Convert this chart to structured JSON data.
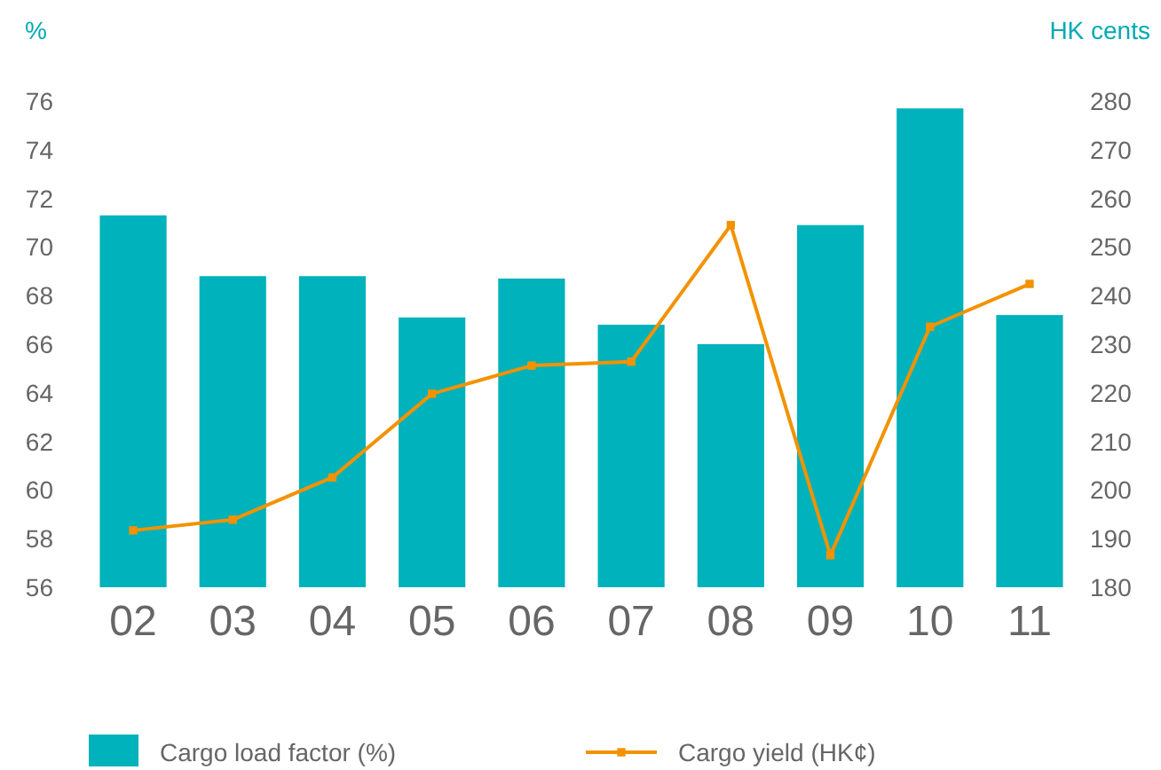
{
  "chart_data": {
    "type": "bar",
    "ylabel": "%",
    "y2label": "HK cents",
    "categories": [
      "02",
      "03",
      "04",
      "05",
      "06",
      "07",
      "08",
      "09",
      "10",
      "11"
    ],
    "series": [
      {
        "name": "Cargo load factor (%)",
        "color": "#00b2bb",
        "values": [
          71.3,
          68.8,
          68.8,
          67.1,
          68.7,
          66.8,
          66.0,
          70.9,
          75.7,
          67.2
        ]
      },
      {
        "name": "Cargo yield (HK¢)",
        "type": "line",
        "axis": "y2",
        "color": "#f39200",
        "marker": "square",
        "values": [
          191.7,
          193.9,
          202.6,
          219.8,
          225.6,
          226.4,
          254.5,
          186.6,
          233.6,
          242.4
        ]
      }
    ],
    "ylim": [
      56,
      76
    ],
    "yticks": [
      56,
      58,
      60,
      62,
      64,
      66,
      68,
      70,
      72,
      74,
      76
    ],
    "y2lim": [
      180,
      280
    ],
    "y2ticks": [
      180,
      190,
      200,
      210,
      220,
      230,
      240,
      250,
      260,
      270,
      280
    ],
    "legend": "bottom",
    "grid": false
  }
}
